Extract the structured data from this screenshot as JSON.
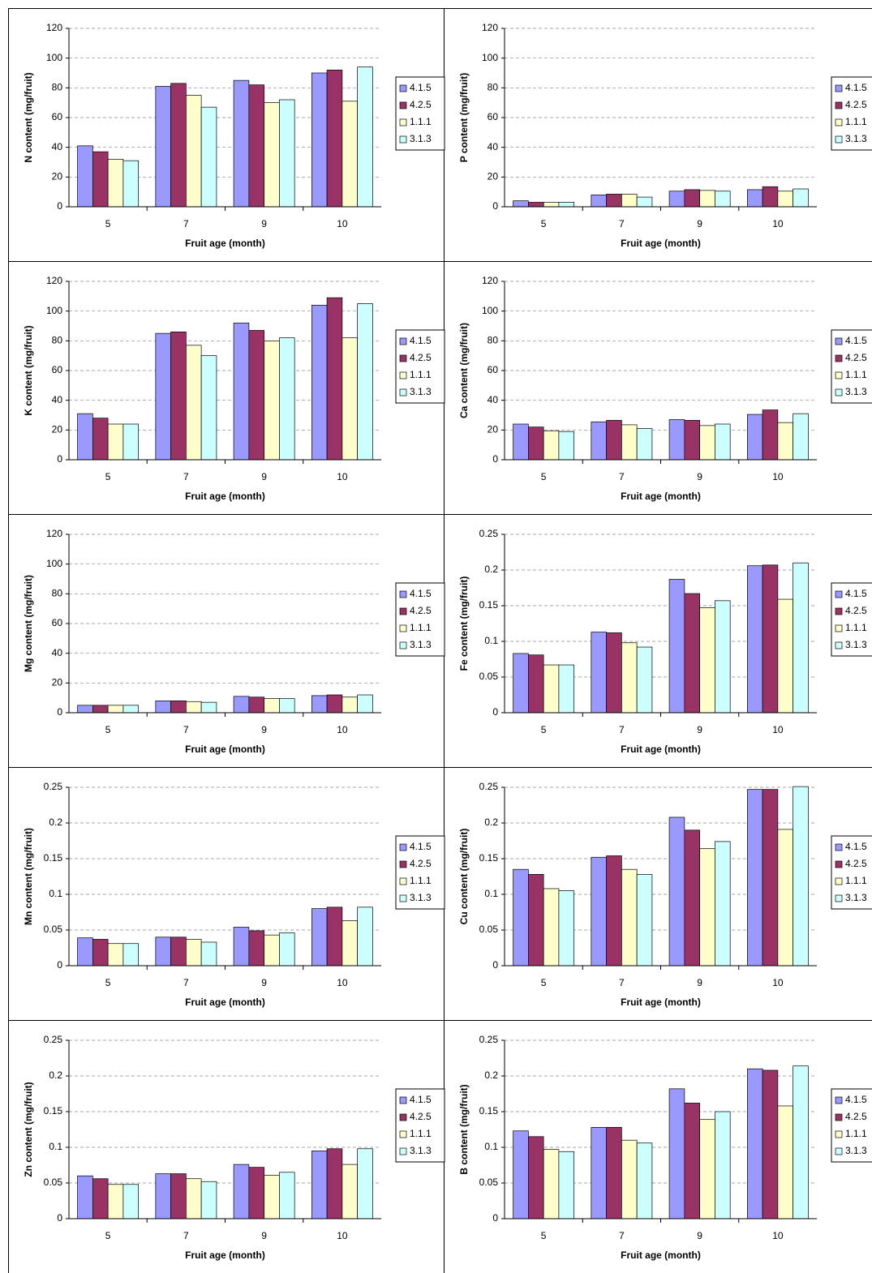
{
  "chart_data": [
    {
      "type": "bar",
      "y_label": "N content (mg/fruit)",
      "x_label": "Fruit age (month)",
      "categories": [
        "5",
        "7",
        "9",
        "10"
      ],
      "series": [
        {
          "name": "4.1.5",
          "color": "#9999ff",
          "values": [
            41,
            81,
            85,
            90
          ]
        },
        {
          "name": "4.2.5",
          "color": "#993366",
          "values": [
            37,
            83,
            82,
            92
          ]
        },
        {
          "name": "1.1.1",
          "color": "#ffffcc",
          "values": [
            32,
            75,
            70,
            71
          ]
        },
        {
          "name": "3.1.3",
          "color": "#ccffff",
          "values": [
            31,
            67,
            72,
            94
          ]
        }
      ],
      "ylim": [
        0,
        120
      ],
      "yticks": [
        0,
        20,
        40,
        60,
        80,
        100,
        120
      ],
      "grid": true,
      "legend": "right"
    },
    {
      "type": "bar",
      "y_label": "P content (mg/fruit)",
      "x_label": "Fruit age (month)",
      "categories": [
        "5",
        "7",
        "9",
        "10"
      ],
      "series": [
        {
          "name": "4.1.5",
          "color": "#9999ff",
          "values": [
            4,
            8,
            10.5,
            11.5
          ]
        },
        {
          "name": "4.2.5",
          "color": "#993366",
          "values": [
            3,
            8.5,
            11.5,
            13.5
          ]
        },
        {
          "name": "1.1.1",
          "color": "#ffffcc",
          "values": [
            3,
            8.5,
            11,
            10.5
          ]
        },
        {
          "name": "3.1.3",
          "color": "#ccffff",
          "values": [
            3,
            6.5,
            10.5,
            12
          ]
        }
      ],
      "ylim": [
        0,
        120
      ],
      "yticks": [
        0,
        20,
        40,
        60,
        80,
        100,
        120
      ],
      "grid": true,
      "legend": "right"
    },
    {
      "type": "bar",
      "y_label": "K content (mg/fruit)",
      "x_label": "Fruit age (month)",
      "categories": [
        "5",
        "7",
        "9",
        "10"
      ],
      "series": [
        {
          "name": "4.1.5",
          "color": "#9999ff",
          "values": [
            31,
            85,
            92,
            104
          ]
        },
        {
          "name": "4.2.5",
          "color": "#993366",
          "values": [
            28,
            86,
            87,
            109
          ]
        },
        {
          "name": "1.1.1",
          "color": "#ffffcc",
          "values": [
            24,
            77,
            80,
            82
          ]
        },
        {
          "name": "3.1.3",
          "color": "#ccffff",
          "values": [
            24,
            70,
            82,
            105
          ]
        }
      ],
      "ylim": [
        0,
        120
      ],
      "yticks": [
        0,
        20,
        40,
        60,
        80,
        100,
        120
      ],
      "grid": true,
      "legend": "right"
    },
    {
      "type": "bar",
      "y_label": "Ca content (mg/fruit)",
      "x_label": "Fruit age (month)",
      "categories": [
        "5",
        "7",
        "9",
        "10"
      ],
      "series": [
        {
          "name": "4.1.5",
          "color": "#9999ff",
          "values": [
            24,
            25.5,
            27,
            30.5
          ]
        },
        {
          "name": "4.2.5",
          "color": "#993366",
          "values": [
            22,
            26.5,
            26.5,
            33.5
          ]
        },
        {
          "name": "1.1.1",
          "color": "#ffffcc",
          "values": [
            19.5,
            23.5,
            23,
            25
          ]
        },
        {
          "name": "3.1.3",
          "color": "#ccffff",
          "values": [
            19,
            21,
            24,
            31
          ]
        }
      ],
      "ylim": [
        0,
        120
      ],
      "yticks": [
        0,
        20,
        40,
        60,
        80,
        100,
        120
      ],
      "grid": true,
      "legend": "right"
    },
    {
      "type": "bar",
      "y_label": "Mg content (mg/fruit)",
      "x_label": "Fruit age (month)",
      "categories": [
        "5",
        "7",
        "9",
        "10"
      ],
      "series": [
        {
          "name": "4.1.5",
          "color": "#9999ff",
          "values": [
            5,
            8,
            11,
            11.5
          ]
        },
        {
          "name": "4.2.5",
          "color": "#993366",
          "values": [
            5,
            8,
            10.5,
            12
          ]
        },
        {
          "name": "1.1.1",
          "color": "#ffffcc",
          "values": [
            5,
            7.5,
            9.5,
            10.5
          ]
        },
        {
          "name": "3.1.3",
          "color": "#ccffff",
          "values": [
            5,
            7,
            9.5,
            12
          ]
        }
      ],
      "ylim": [
        0,
        120
      ],
      "yticks": [
        0,
        20,
        40,
        60,
        80,
        100,
        120
      ],
      "grid": true,
      "legend": "right"
    },
    {
      "type": "bar",
      "y_label": "Fe content (mg/fruit)",
      "x_label": "Fruit age (month)",
      "categories": [
        "5",
        "7",
        "9",
        "10"
      ],
      "series": [
        {
          "name": "4.1.5",
          "color": "#9999ff",
          "values": [
            0.083,
            0.113,
            0.187,
            0.206
          ]
        },
        {
          "name": "4.2.5",
          "color": "#993366",
          "values": [
            0.081,
            0.112,
            0.167,
            0.207
          ]
        },
        {
          "name": "1.1.1",
          "color": "#ffffcc",
          "values": [
            0.067,
            0.098,
            0.147,
            0.159
          ]
        },
        {
          "name": "3.1.3",
          "color": "#ccffff",
          "values": [
            0.067,
            0.092,
            0.157,
            0.21
          ]
        }
      ],
      "ylim": [
        0,
        0.25
      ],
      "yticks": [
        0,
        0.05,
        0.1,
        0.15,
        0.2,
        0.25
      ],
      "grid": true,
      "legend": "right"
    },
    {
      "type": "bar",
      "y_label": "Mn content (mg/fruit)",
      "x_label": "Fruit age (month)",
      "categories": [
        "5",
        "7",
        "9",
        "10"
      ],
      "series": [
        {
          "name": "4.1.5",
          "color": "#9999ff",
          "values": [
            0.039,
            0.04,
            0.054,
            0.08
          ]
        },
        {
          "name": "4.2.5",
          "color": "#993366",
          "values": [
            0.037,
            0.04,
            0.049,
            0.082
          ]
        },
        {
          "name": "1.1.1",
          "color": "#ffffcc",
          "values": [
            0.031,
            0.037,
            0.043,
            0.063
          ]
        },
        {
          "name": "3.1.3",
          "color": "#ccffff",
          "values": [
            0.031,
            0.033,
            0.046,
            0.082
          ]
        }
      ],
      "ylim": [
        0,
        0.25
      ],
      "yticks": [
        0,
        0.05,
        0.1,
        0.15,
        0.2,
        0.25
      ],
      "grid": true,
      "legend": "right"
    },
    {
      "type": "bar",
      "y_label": "Cu content (mg/fruit)",
      "x_label": "Fruit age (month)",
      "categories": [
        "5",
        "7",
        "9",
        "10"
      ],
      "series": [
        {
          "name": "4.1.5",
          "color": "#9999ff",
          "values": [
            0.135,
            0.152,
            0.208,
            0.247
          ]
        },
        {
          "name": "4.2.5",
          "color": "#993366",
          "values": [
            0.128,
            0.154,
            0.19,
            0.247
          ]
        },
        {
          "name": "1.1.1",
          "color": "#ffffcc",
          "values": [
            0.108,
            0.135,
            0.164,
            0.191
          ]
        },
        {
          "name": "3.1.3",
          "color": "#ccffff",
          "values": [
            0.105,
            0.128,
            0.174,
            0.251
          ]
        }
      ],
      "ylim": [
        0,
        0.25
      ],
      "yticks": [
        0,
        0.05,
        0.1,
        0.15,
        0.2,
        0.25
      ],
      "grid": true,
      "legend": "right"
    },
    {
      "type": "bar",
      "y_label": "Zn content (mg/fruit)",
      "x_label": "Fruit age (month)",
      "categories": [
        "5",
        "7",
        "9",
        "10"
      ],
      "series": [
        {
          "name": "4.1.5",
          "color": "#9999ff",
          "values": [
            0.06,
            0.063,
            0.076,
            0.095
          ]
        },
        {
          "name": "4.2.5",
          "color": "#993366",
          "values": [
            0.056,
            0.063,
            0.072,
            0.098
          ]
        },
        {
          "name": "1.1.1",
          "color": "#ffffcc",
          "values": [
            0.048,
            0.056,
            0.061,
            0.076
          ]
        },
        {
          "name": "3.1.3",
          "color": "#ccffff",
          "values": [
            0.048,
            0.052,
            0.065,
            0.098
          ]
        }
      ],
      "ylim": [
        0,
        0.25
      ],
      "yticks": [
        0,
        0.05,
        0.1,
        0.15,
        0.2,
        0.25
      ],
      "grid": true,
      "legend": "right"
    },
    {
      "type": "bar",
      "y_label": "B content (mg/fruit)",
      "x_label": "Fruit age (month)",
      "categories": [
        "5",
        "7",
        "9",
        "10"
      ],
      "series": [
        {
          "name": "4.1.5",
          "color": "#9999ff",
          "values": [
            0.123,
            0.128,
            0.182,
            0.21
          ]
        },
        {
          "name": "4.2.5",
          "color": "#993366",
          "values": [
            0.115,
            0.128,
            0.162,
            0.208
          ]
        },
        {
          "name": "1.1.1",
          "color": "#ffffcc",
          "values": [
            0.097,
            0.11,
            0.139,
            0.158
          ]
        },
        {
          "name": "3.1.3",
          "color": "#ccffff",
          "values": [
            0.094,
            0.106,
            0.15,
            0.214
          ]
        }
      ],
      "ylim": [
        0,
        0.25
      ],
      "yticks": [
        0,
        0.05,
        0.1,
        0.15,
        0.2,
        0.25
      ],
      "grid": true,
      "legend": "right"
    }
  ]
}
